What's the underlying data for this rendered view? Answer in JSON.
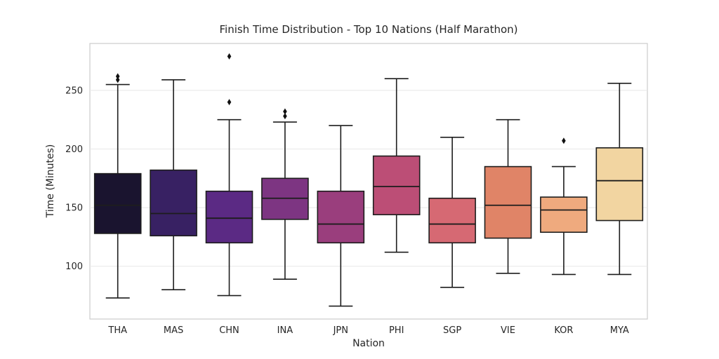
{
  "chart_data": {
    "type": "box",
    "title": "Finish Time Distribution - Top 10 Nations (Half Marathon)",
    "xlabel": "Nation",
    "ylabel": "Time (Minutes)",
    "ylim": [
      55,
      290
    ],
    "yticks": [
      100,
      150,
      200,
      250
    ],
    "grid": "horizontal",
    "legend": "none",
    "categories": [
      "THA",
      "MAS",
      "CHN",
      "INA",
      "JPN",
      "PHI",
      "SGP",
      "VIE",
      "KOR",
      "MYA"
    ],
    "series": [
      {
        "nation": "THA",
        "whisker_low": 73,
        "q1": 128,
        "median": 152,
        "q3": 179,
        "whisker_high": 255,
        "outliers": [
          259,
          262
        ],
        "color": "#1a142f"
      },
      {
        "nation": "MAS",
        "whisker_low": 80,
        "q1": 126,
        "median": 145,
        "q3": 182,
        "whisker_high": 259,
        "outliers": [],
        "color": "#382163"
      },
      {
        "nation": "CHN",
        "whisker_low": 75,
        "q1": 120,
        "median": 141,
        "q3": 164,
        "whisker_high": 225,
        "outliers": [
          240,
          279
        ],
        "color": "#5b2a84"
      },
      {
        "nation": "INA",
        "whisker_low": 89,
        "q1": 140,
        "median": 158,
        "q3": 175,
        "whisker_high": 223,
        "outliers": [
          228,
          232
        ],
        "color": "#7d3582"
      },
      {
        "nation": "JPN",
        "whisker_low": 66,
        "q1": 120,
        "median": 136,
        "q3": 164,
        "whisker_high": 220,
        "outliers": [],
        "color": "#9a3e7d"
      },
      {
        "nation": "PHI",
        "whisker_low": 112,
        "q1": 144,
        "median": 168,
        "q3": 194,
        "whisker_high": 260,
        "outliers": [],
        "color": "#bc4e76"
      },
      {
        "nation": "SGP",
        "whisker_low": 82,
        "q1": 120,
        "median": 136,
        "q3": 158,
        "whisker_high": 210,
        "outliers": [],
        "color": "#d66973"
      },
      {
        "nation": "VIE",
        "whisker_low": 94,
        "q1": 124,
        "median": 152,
        "q3": 185,
        "whisker_high": 225,
        "outliers": [],
        "color": "#e08467"
      },
      {
        "nation": "KOR",
        "whisker_low": 93,
        "q1": 129,
        "median": 148,
        "q3": 159,
        "whisker_high": 185,
        "outliers": [
          207
        ],
        "color": "#efaa7e"
      },
      {
        "nation": "MYA",
        "whisker_low": 93,
        "q1": 139,
        "median": 173,
        "q3": 201,
        "whisker_high": 256,
        "outliers": [],
        "color": "#f2d5a1"
      }
    ],
    "styles": {
      "box_edge": "#1d1d1d",
      "median_color": "#1d1d1d",
      "outlier_color": "#111111",
      "grid_color": "#e8e8e8",
      "frame_color": "#cccccc",
      "text_color": "#262626",
      "background": "#ffffff"
    }
  }
}
